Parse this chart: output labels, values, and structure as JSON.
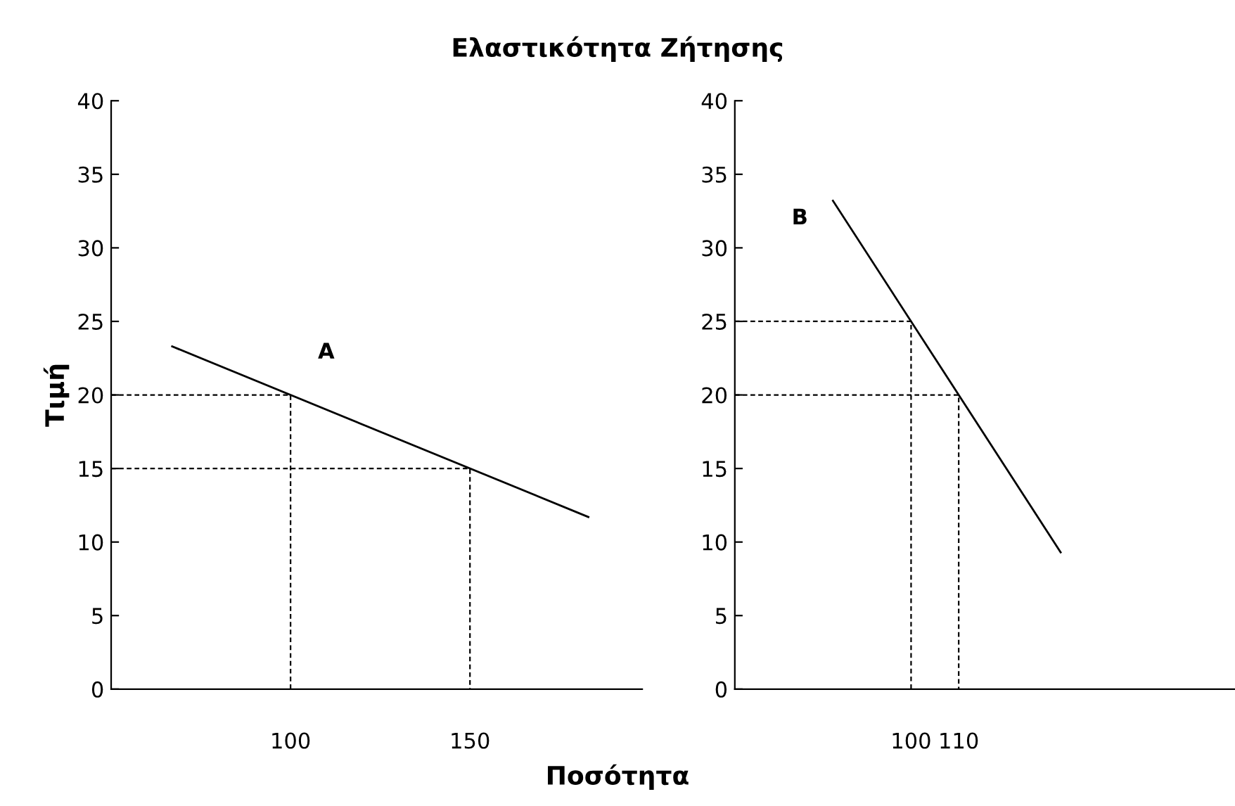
{
  "chart_data": [
    {
      "type": "line",
      "title": "Ελαστικότητα Ζήτησης",
      "ylabel": "Τιμή",
      "xlabel": "Ποσότητα",
      "xlim": [
        50,
        198
      ],
      "xticks": [
        100,
        150
      ],
      "ylim": [
        0,
        40
      ],
      "yticks": [
        0,
        5,
        10,
        15,
        20,
        25,
        30,
        35,
        40
      ],
      "grid": false,
      "legend": false,
      "marker": "none",
      "annotations": [
        "A"
      ],
      "series": [
        {
          "color": "#000000",
          "x": [
            67,
            183
          ],
          "values": [
            23.3,
            11.7
          ],
          "line_style": "solid"
        },
        {
          "color": "#000000",
          "x": [
            50,
            100,
            100
          ],
          "values": [
            20,
            20,
            0
          ],
          "line_style": "dashed"
        },
        {
          "color": "#000000",
          "x": [
            50,
            150,
            150
          ],
          "values": [
            15,
            15,
            0
          ],
          "line_style": "dashed"
        }
      ]
    },
    {
      "type": "line",
      "xlim": [
        63,
        168
      ],
      "xticks": [
        100,
        110
      ],
      "ylim": [
        0,
        40
      ],
      "yticks": [
        0,
        5,
        10,
        15,
        20,
        25,
        30,
        35,
        40
      ],
      "grid": false,
      "legend": false,
      "marker": "none",
      "annotations": [
        "B"
      ],
      "series": [
        {
          "color": "#000000",
          "x": [
            83.6,
            131.4
          ],
          "values": [
            33.2,
            9.3
          ],
          "line_style": "solid"
        },
        {
          "color": "#000000",
          "x": [
            63,
            100,
            100
          ],
          "values": [
            25,
            25,
            0
          ],
          "line_style": "dashed"
        },
        {
          "color": "#000000",
          "x": [
            63,
            110,
            110
          ],
          "values": [
            20,
            20,
            0
          ],
          "line_style": "dashed"
        }
      ]
    }
  ]
}
